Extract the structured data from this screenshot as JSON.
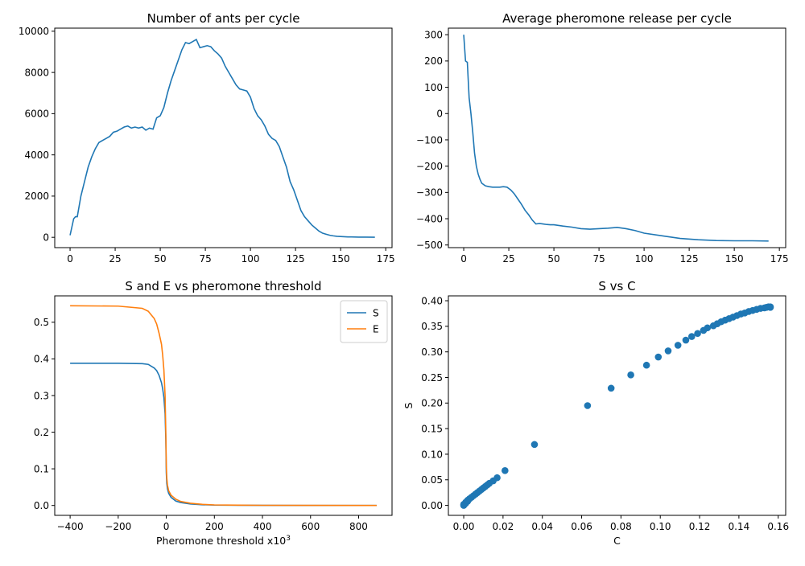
{
  "chart_data": [
    {
      "type": "line",
      "title": "Number of ants per cycle",
      "xlabel": "",
      "ylabel": "",
      "xlim": [
        -8.5,
        178.5
      ],
      "ylim": [
        -500,
        10150
      ],
      "xticks": [
        0,
        25,
        50,
        75,
        100,
        125,
        150,
        175
      ],
      "yticks": [
        0,
        2000,
        4000,
        6000,
        8000,
        10000
      ],
      "grid": false,
      "color": "#1f77b4",
      "x": [
        0,
        2,
        3,
        4,
        6,
        8,
        10,
        12,
        14,
        16,
        18,
        20,
        22,
        24,
        26,
        28,
        30,
        32,
        34,
        36,
        38,
        40,
        42,
        44,
        46,
        48,
        50,
        52,
        54,
        56,
        58,
        60,
        62,
        64,
        66,
        68,
        70,
        72,
        74,
        76,
        78,
        80,
        82,
        84,
        86,
        88,
        90,
        92,
        94,
        96,
        98,
        100,
        102,
        104,
        106,
        108,
        110,
        112,
        114,
        116,
        118,
        120,
        122,
        124,
        126,
        128,
        130,
        132,
        134,
        136,
        138,
        140,
        142,
        144,
        146,
        148,
        150,
        152,
        154,
        156,
        158,
        160,
        164,
        169
      ],
      "y": [
        100,
        900,
        1000,
        1000,
        2000,
        2700,
        3400,
        3900,
        4300,
        4600,
        4700,
        4800,
        4900,
        5100,
        5150,
        5250,
        5350,
        5400,
        5300,
        5350,
        5300,
        5350,
        5200,
        5300,
        5250,
        5800,
        5900,
        6300,
        7000,
        7600,
        8100,
        8600,
        9100,
        9450,
        9400,
        9500,
        9600,
        9200,
        9250,
        9300,
        9250,
        9050,
        8900,
        8700,
        8300,
        8000,
        7700,
        7400,
        7200,
        7150,
        7100,
        6800,
        6250,
        5900,
        5700,
        5400,
        5000,
        4800,
        4700,
        4400,
        3900,
        3400,
        2700,
        2300,
        1800,
        1300,
        1000,
        800,
        600,
        450,
        300,
        200,
        150,
        100,
        70,
        50,
        40,
        30,
        20,
        20,
        15,
        10,
        10,
        5
      ]
    },
    {
      "type": "line",
      "title": "Average pheromone release per cycle",
      "xlabel": "",
      "ylabel": "",
      "xlim": [
        -8.5,
        178.5
      ],
      "ylim": [
        -510,
        325
      ],
      "xticks": [
        0,
        25,
        50,
        75,
        100,
        125,
        150,
        175
      ],
      "yticks": [
        -500,
        -400,
        -300,
        -200,
        -100,
        0,
        100,
        200,
        300
      ],
      "grid": false,
      "color": "#1f77b4",
      "x": [
        0,
        1,
        2,
        3,
        4,
        5,
        6,
        7,
        8,
        9,
        10,
        12,
        14,
        16,
        18,
        20,
        22,
        24,
        26,
        28,
        30,
        32,
        34,
        36,
        38,
        40,
        42,
        44,
        46,
        48,
        50,
        55,
        60,
        65,
        70,
        75,
        80,
        85,
        90,
        95,
        100,
        110,
        120,
        130,
        140,
        150,
        160,
        169
      ],
      "y": [
        300,
        200,
        195,
        60,
        0,
        -70,
        -150,
        -200,
        -230,
        -250,
        -265,
        -275,
        -278,
        -280,
        -280,
        -280,
        -278,
        -280,
        -290,
        -305,
        -325,
        -345,
        -368,
        -385,
        -405,
        -420,
        -418,
        -420,
        -422,
        -423,
        -423,
        -428,
        -432,
        -438,
        -440,
        -438,
        -436,
        -433,
        -438,
        -445,
        -455,
        -465,
        -475,
        -480,
        -483,
        -484,
        -484,
        -485
      ]
    },
    {
      "type": "line",
      "title": "S and E vs pheromone threshold",
      "xlabel": "Pheromone threshold x10",
      "xlabel_exponent": "3",
      "ylabel": "",
      "xlim": [
        -464,
        939
      ],
      "ylim": [
        -0.027,
        0.572
      ],
      "xticks": [
        -400,
        -200,
        0,
        200,
        400,
        600,
        800
      ],
      "yticks": [
        0.0,
        0.1,
        0.2,
        0.3,
        0.4,
        0.5
      ],
      "grid": false,
      "legend": "top-right",
      "x": [
        -400,
        -200,
        -100,
        -75,
        -50,
        -40,
        -30,
        -20,
        -15,
        -10,
        -5,
        -2,
        0,
        2,
        5,
        10,
        20,
        40,
        60,
        100,
        150,
        200,
        300,
        400,
        600,
        875
      ],
      "series": [
        {
          "name": "S",
          "color": "#1f77b4",
          "values": [
            0.388,
            0.388,
            0.387,
            0.385,
            0.375,
            0.368,
            0.355,
            0.335,
            0.318,
            0.295,
            0.25,
            0.18,
            0.09,
            0.06,
            0.045,
            0.033,
            0.022,
            0.012,
            0.008,
            0.004,
            0.002,
            0.001,
            0.0005,
            0.0002,
            0.0001,
            0.0
          ]
        },
        {
          "name": "E",
          "color": "#ff7f0e",
          "values": [
            0.545,
            0.544,
            0.538,
            0.53,
            0.51,
            0.495,
            0.47,
            0.44,
            0.41,
            0.37,
            0.3,
            0.2,
            0.11,
            0.075,
            0.055,
            0.04,
            0.028,
            0.017,
            0.011,
            0.006,
            0.003,
            0.0015,
            0.0008,
            0.0004,
            0.0002,
            0.0
          ]
        }
      ]
    },
    {
      "type": "scatter",
      "title": "S vs C",
      "xlabel": "C",
      "ylabel": "S",
      "xlim": [
        -0.0078,
        0.1638
      ],
      "ylim": [
        -0.0195,
        0.4095
      ],
      "xticks": [
        0.0,
        0.02,
        0.04,
        0.06,
        0.08,
        0.1,
        0.12,
        0.14,
        0.16
      ],
      "yticks": [
        0.0,
        0.05,
        0.1,
        0.15,
        0.2,
        0.25,
        0.3,
        0.35,
        0.4
      ],
      "grid": false,
      "color": "#1f77b4",
      "x": [
        0.0,
        0.0,
        0.001,
        0.001,
        0.002,
        0.002,
        0.003,
        0.004,
        0.005,
        0.006,
        0.007,
        0.008,
        0.009,
        0.01,
        0.011,
        0.012,
        0.013,
        0.015,
        0.017,
        0.021,
        0.036,
        0.063,
        0.075,
        0.085,
        0.093,
        0.099,
        0.104,
        0.109,
        0.113,
        0.116,
        0.119,
        0.122,
        0.124,
        0.127,
        0.129,
        0.131,
        0.133,
        0.135,
        0.137,
        0.139,
        0.141,
        0.143,
        0.145,
        0.147,
        0.149,
        0.151,
        0.153,
        0.154,
        0.155,
        0.156,
        0.156
      ],
      "y": [
        0.0,
        0.002,
        0.004,
        0.006,
        0.008,
        0.01,
        0.013,
        0.016,
        0.019,
        0.022,
        0.025,
        0.028,
        0.031,
        0.034,
        0.037,
        0.04,
        0.043,
        0.048,
        0.054,
        0.068,
        0.119,
        0.195,
        0.229,
        0.255,
        0.274,
        0.29,
        0.302,
        0.313,
        0.323,
        0.33,
        0.336,
        0.342,
        0.347,
        0.351,
        0.355,
        0.359,
        0.362,
        0.365,
        0.368,
        0.371,
        0.374,
        0.376,
        0.379,
        0.381,
        0.383,
        0.385,
        0.386,
        0.387,
        0.388,
        0.388,
        0.387
      ]
    }
  ]
}
